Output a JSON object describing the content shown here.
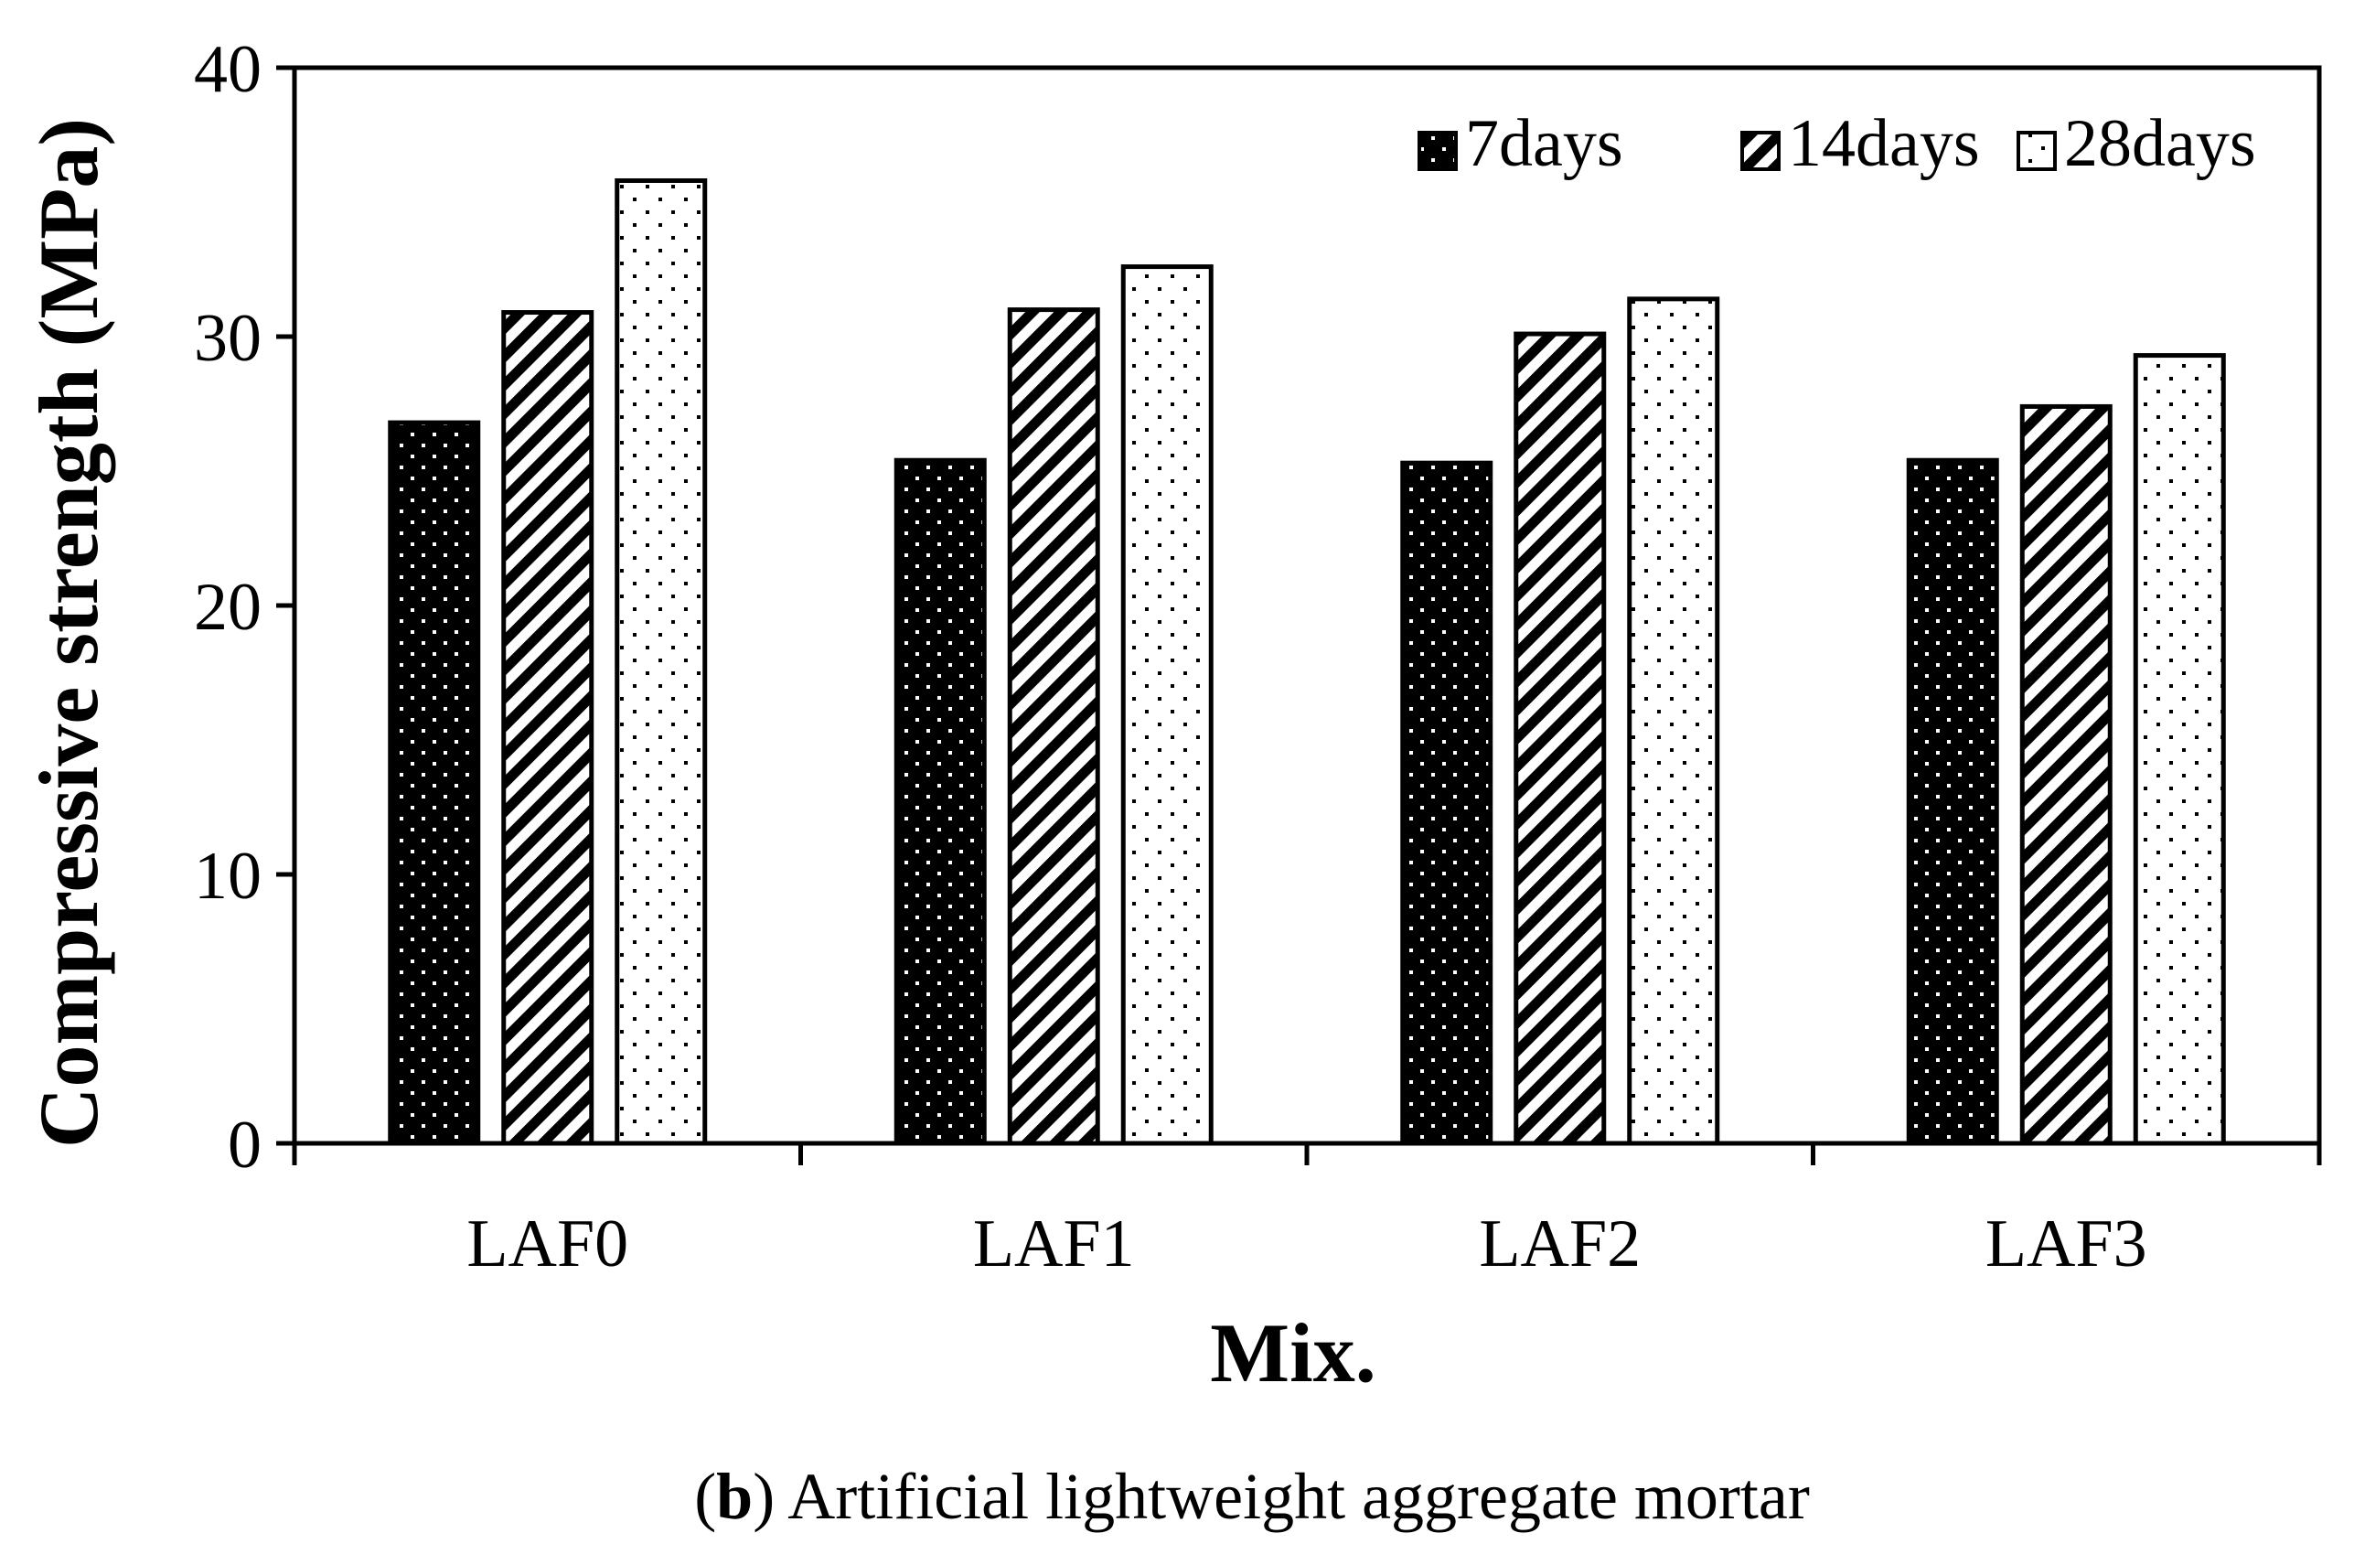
{
  "chart_data": {
    "type": "bar",
    "categories": [
      "LAF0",
      "LAF1",
      "LAF2",
      "LAF3"
    ],
    "series": [
      {
        "name": "7days",
        "pattern": "dots-dark",
        "values": [
          26.8,
          25.4,
          25.3,
          25.4
        ]
      },
      {
        "name": "14days",
        "pattern": "hatch",
        "values": [
          30.9,
          31.0,
          30.1,
          27.4
        ]
      },
      {
        "name": "28days",
        "pattern": "dots-light",
        "values": [
          35.8,
          32.6,
          31.4,
          29.3
        ]
      }
    ],
    "xlabel": "Mix.",
    "ylabel": "Compressive strength (MPa)",
    "ylim": [
      0,
      40
    ],
    "yticks": [
      "0",
      "10",
      "20",
      "30",
      "40"
    ],
    "legend_position": "top-right",
    "grid": false
  },
  "caption": {
    "prefix_open": "(",
    "label": "b",
    "prefix_close": ")",
    "text": " Artificial lightweight aggregate mortar"
  },
  "colors": {
    "bar_dark": "#000000",
    "bar_light": "#ffffff",
    "stroke": "#000000"
  }
}
